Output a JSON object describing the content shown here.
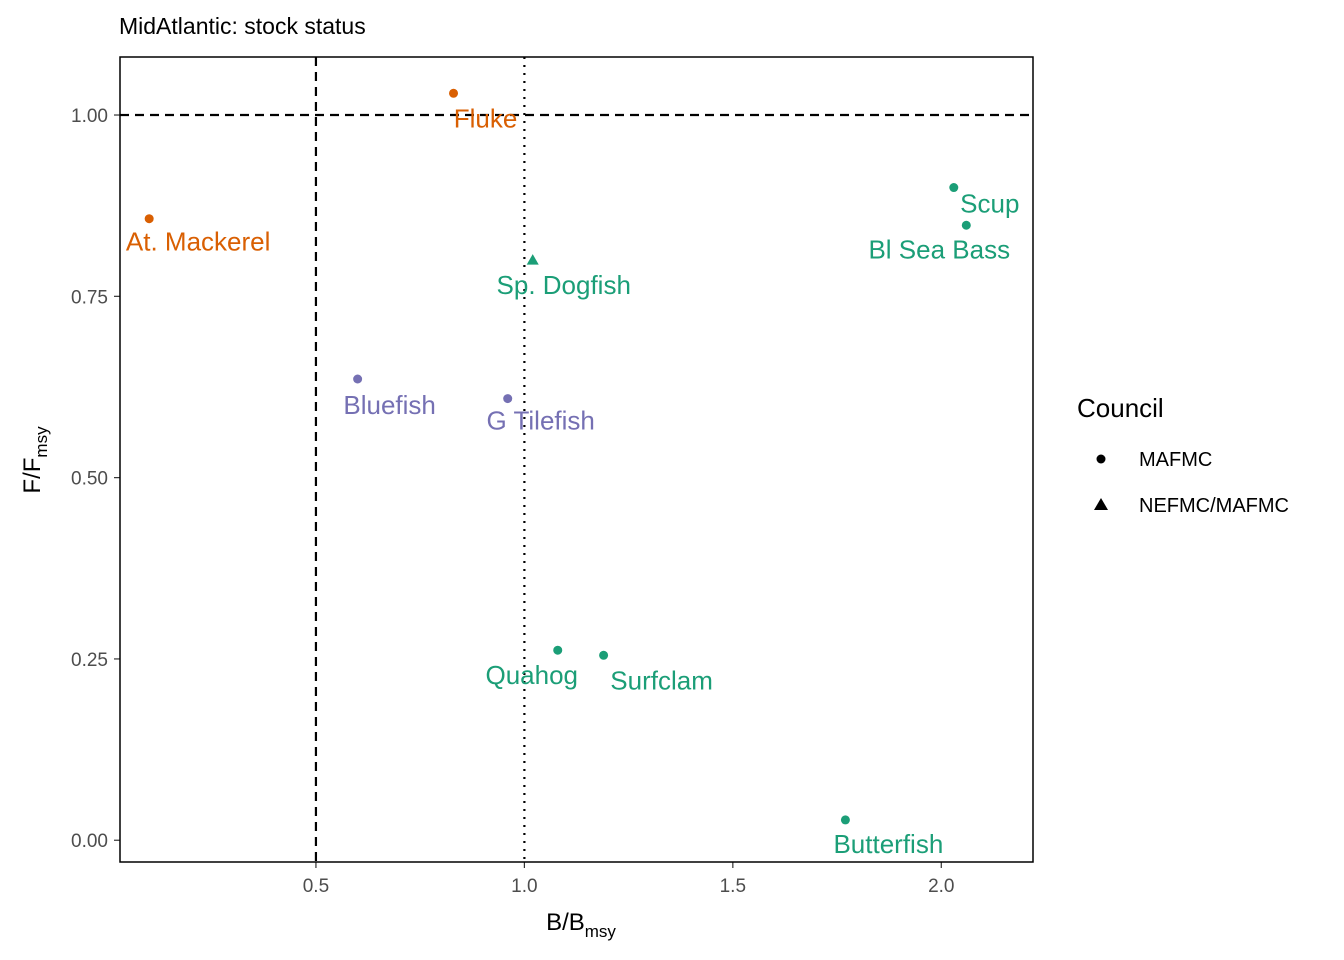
{
  "chart_data": {
    "type": "scatter",
    "title": "MidAtlantic: stock status",
    "xlabel": {
      "main": "B/B",
      "sub": "msy"
    },
    "ylabel": {
      "main": "F/F",
      "sub": "msy"
    },
    "xlim": [
      0.03,
      2.22
    ],
    "ylim": [
      -0.03,
      1.08
    ],
    "x_ticks": [
      {
        "value": 0.5,
        "label": "0.5"
      },
      {
        "value": 1.0,
        "label": "1.0"
      },
      {
        "value": 1.5,
        "label": "1.5"
      },
      {
        "value": 2.0,
        "label": "2.0"
      }
    ],
    "y_ticks": [
      {
        "value": 0.0,
        "label": "0.00"
      },
      {
        "value": 0.25,
        "label": "0.25"
      },
      {
        "value": 0.5,
        "label": "0.50"
      },
      {
        "value": 0.75,
        "label": "0.75"
      },
      {
        "value": 1.0,
        "label": "1.00"
      }
    ],
    "reference_lines": [
      {
        "axis": "x",
        "value": 0.5,
        "style": "dashed"
      },
      {
        "axis": "x",
        "value": 1.0,
        "style": "dotted"
      },
      {
        "axis": "y",
        "value": 1.0,
        "style": "dashed"
      }
    ],
    "colors": {
      "orange": "#d95f02",
      "purple": "#7570b3",
      "green": "#1b9e77"
    },
    "points": [
      {
        "label": "At. Mackerel",
        "x": 0.1,
        "y": 0.857,
        "council": "MAFMC",
        "color": "#d95f02"
      },
      {
        "label": "Fluke",
        "x": 0.83,
        "y": 1.03,
        "council": "MAFMC",
        "color": "#d95f02"
      },
      {
        "label": "Bluefish",
        "x": 0.6,
        "y": 0.636,
        "council": "MAFMC",
        "color": "#7570b3"
      },
      {
        "label": "G Tilefish",
        "x": 0.96,
        "y": 0.609,
        "council": "MAFMC",
        "color": "#7570b3"
      },
      {
        "label": "Sp. Dogfish",
        "x": 1.02,
        "y": 0.8,
        "council": "NEFMC/MAFMC",
        "color": "#1b9e77"
      },
      {
        "label": "Scup",
        "x": 2.03,
        "y": 0.9,
        "council": "MAFMC",
        "color": "#1b9e77"
      },
      {
        "label": "Bl Sea Bass",
        "x": 2.06,
        "y": 0.848,
        "council": "MAFMC",
        "color": "#1b9e77"
      },
      {
        "label": "Quahog",
        "x": 1.08,
        "y": 0.262,
        "council": "MAFMC",
        "color": "#1b9e77"
      },
      {
        "label": "Surfclam",
        "x": 1.19,
        "y": 0.255,
        "council": "MAFMC",
        "color": "#1b9e77"
      },
      {
        "label": "Butterfish",
        "x": 1.77,
        "y": 0.028,
        "council": "MAFMC",
        "color": "#1b9e77"
      }
    ],
    "legend": {
      "title": "Council",
      "placement": "right",
      "entries": [
        {
          "label": "MAFMC",
          "shape": "circle"
        },
        {
          "label": "NEFMC/MAFMC",
          "shape": "triangle"
        }
      ]
    },
    "grid": false
  }
}
